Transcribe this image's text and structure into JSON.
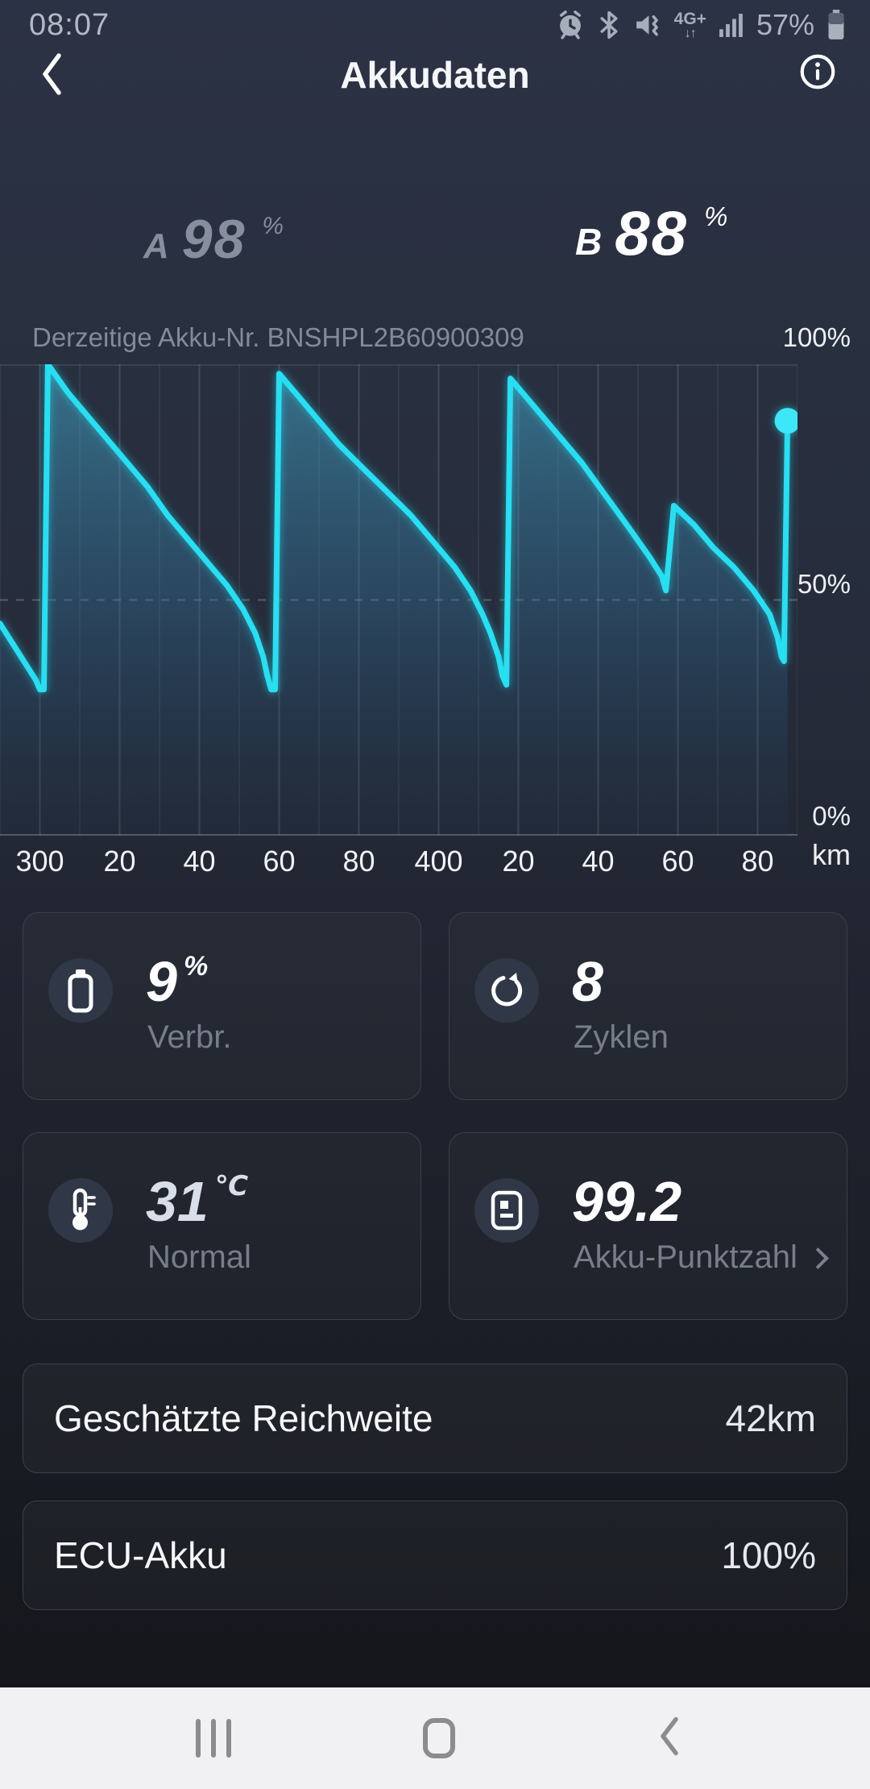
{
  "status_bar": {
    "time": "08:07",
    "network_label": "4G+",
    "network_arrows": "↓↑",
    "battery_text": "57%",
    "icons": [
      "alarm-icon",
      "bluetooth-icon",
      "mute-vibrate-icon",
      "network-4g-icon",
      "signal-icon",
      "battery-level-icon"
    ]
  },
  "header": {
    "title": "Akkudaten"
  },
  "battery_summary": {
    "a": {
      "label": "A",
      "value": "98",
      "unit": "%"
    },
    "b": {
      "label": "B",
      "value": "88",
      "unit": "%"
    }
  },
  "chart": {
    "caption": "Derzeitige Akku-Nr. BNSHPL2B60900309",
    "y_top_label": "100%",
    "y_mid_label": "50%",
    "y_bottom_label": "0%",
    "x_unit": "km",
    "x_tick_labels": [
      "300",
      "20",
      "40",
      "60",
      "80",
      "400",
      "20",
      "40",
      "60",
      "80"
    ]
  },
  "chart_data": {
    "type": "line",
    "title": "Battery charge over distance (sawtooth charge/discharge)",
    "xlabel": "km",
    "ylabel": "%",
    "x_range": [
      290,
      490
    ],
    "y_range": [
      0,
      100
    ],
    "grid_km_step": 10,
    "x_tick_km": [
      300,
      320,
      340,
      360,
      380,
      400,
      420,
      440,
      460,
      480
    ],
    "line_color": "#27dff2",
    "points": [
      [
        290,
        45
      ],
      [
        293,
        41
      ],
      [
        296,
        37
      ],
      [
        299,
        33
      ],
      [
        300,
        31
      ],
      [
        301,
        31
      ],
      [
        302,
        100
      ],
      [
        307,
        94
      ],
      [
        312,
        89
      ],
      [
        317,
        84
      ],
      [
        322,
        79
      ],
      [
        327,
        74
      ],
      [
        332,
        68
      ],
      [
        337,
        63
      ],
      [
        342,
        58
      ],
      [
        347,
        53
      ],
      [
        351,
        48
      ],
      [
        354,
        43
      ],
      [
        356,
        38
      ],
      [
        357,
        34
      ],
      [
        358,
        31
      ],
      [
        359,
        31
      ],
      [
        360,
        98
      ],
      [
        365,
        93
      ],
      [
        370,
        88
      ],
      [
        375,
        83
      ],
      [
        381,
        78
      ],
      [
        387,
        73
      ],
      [
        393,
        68
      ],
      [
        399,
        62
      ],
      [
        404,
        57
      ],
      [
        408,
        52
      ],
      [
        411,
        47
      ],
      [
        413,
        43
      ],
      [
        415,
        38
      ],
      [
        416,
        34
      ],
      [
        417,
        32
      ],
      [
        418,
        97
      ],
      [
        424,
        91
      ],
      [
        430,
        85
      ],
      [
        436,
        79
      ],
      [
        442,
        72
      ],
      [
        448,
        65
      ],
      [
        453,
        59
      ],
      [
        456,
        55
      ],
      [
        457,
        52
      ],
      [
        459,
        70
      ],
      [
        464,
        66
      ],
      [
        469,
        61
      ],
      [
        474,
        57
      ],
      [
        479,
        52
      ],
      [
        483,
        47
      ],
      [
        485,
        42
      ],
      [
        486,
        38
      ],
      [
        486.6,
        37
      ],
      [
        487.5,
        88
      ]
    ],
    "current_point": [
      487.5,
      88
    ],
    "legend": "none",
    "grid": "vertical"
  },
  "stats": [
    {
      "icon": "battery-icon",
      "value": "9",
      "unit": "%",
      "label": "Verbr."
    },
    {
      "icon": "cycles-icon",
      "value": "8",
      "unit": "",
      "label": "Zyklen"
    },
    {
      "icon": "thermometer-icon",
      "value": "31",
      "unit": "℃",
      "label": "Normal"
    },
    {
      "icon": "score-icon",
      "value": "99.2",
      "unit": "",
      "label": "Akku-Punktzahl"
    }
  ],
  "info_rows": [
    {
      "label": "Geschätzte Reichweite",
      "value": "42km"
    },
    {
      "label": "ECU-Akku",
      "value": "100%"
    }
  ],
  "nav_bar": {
    "icons": [
      "recents-icon",
      "home-icon",
      "back-icon"
    ]
  }
}
